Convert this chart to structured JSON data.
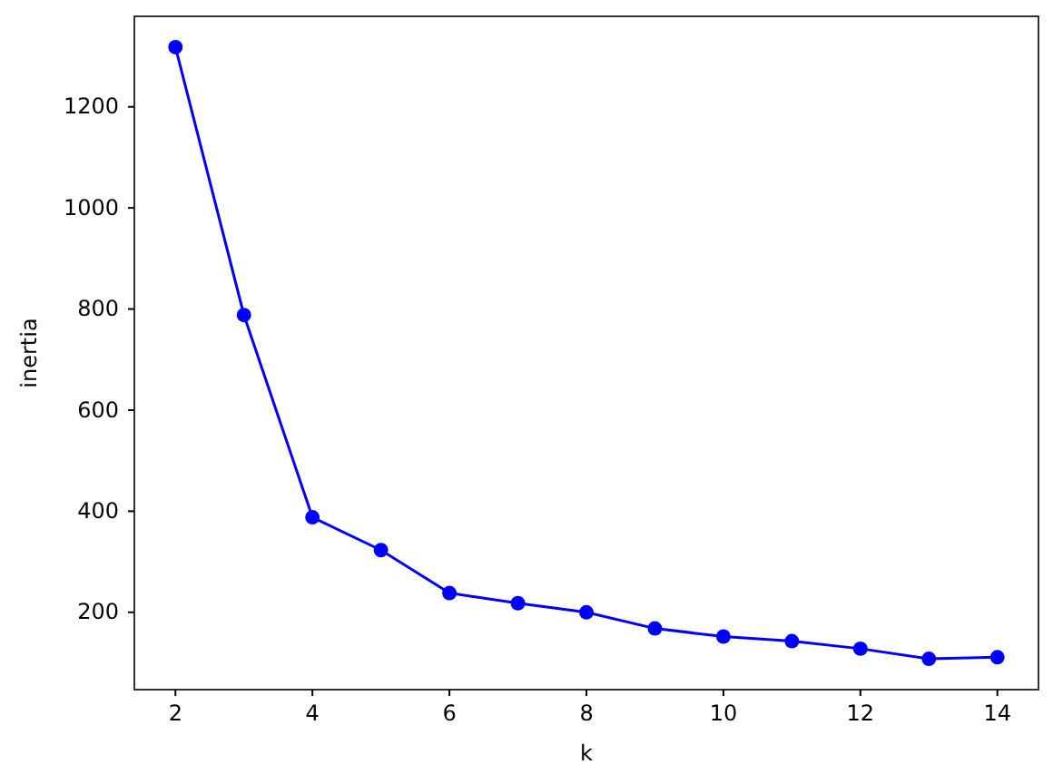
{
  "chart_data": {
    "type": "line",
    "xlabel": "k",
    "ylabel": "inertia",
    "x": [
      2,
      3,
      4,
      5,
      6,
      7,
      8,
      9,
      10,
      11,
      12,
      13,
      14
    ],
    "series": [
      {
        "color": "#0000ff",
        "values": [
          1318,
          788,
          388,
          323,
          238,
          218,
          200,
          168,
          152,
          143,
          128,
          108,
          111
        ]
      }
    ],
    "xlim": [
      1.4,
      14.6
    ],
    "xticks": [
      2,
      4,
      6,
      8,
      10,
      12,
      14
    ],
    "ylim": [
      47,
      1379
    ],
    "yticks": [
      200,
      400,
      600,
      800,
      1000,
      1200
    ],
    "marker": "circle",
    "line_style": "solid",
    "grid": false,
    "legend": false
  }
}
